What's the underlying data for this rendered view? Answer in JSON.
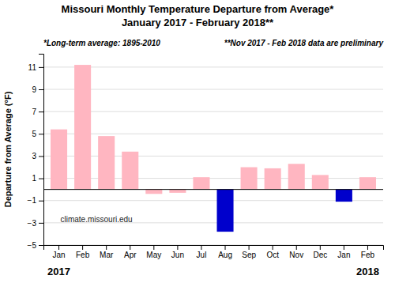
{
  "chart_data": {
    "type": "bar",
    "title": "Missouri Monthly Temperature Departure from Average*",
    "subtitle": "January 2017 - February 2018**",
    "ylabel": "Departure from Average (°F)",
    "annotations": [
      {
        "text": "*Long-term average: 1895-2010"
      },
      {
        "text": "**Nov 2017 - Feb 2018 data are preliminary"
      },
      {
        "text": "climate.missouri.edu"
      },
      {
        "text": "2017",
        "x": 0
      },
      {
        "text": "2018",
        "x": 13
      }
    ],
    "categories": [
      "Jan",
      "Feb",
      "Mar",
      "Apr",
      "May",
      "Jun",
      "Jul",
      "Aug",
      "Sep",
      "Oct",
      "Nov",
      "Dec",
      "Jan",
      "Feb"
    ],
    "values": [
      5.4,
      11.2,
      4.8,
      3.4,
      -0.4,
      -0.3,
      1.1,
      -3.8,
      2.0,
      1.9,
      2.3,
      1.3,
      -1.1,
      1.1
    ],
    "colors": [
      "#FFB6C1",
      "#FFB6C1",
      "#FFB6C1",
      "#FFB6C1",
      "#FFB6C1",
      "#FFB6C1",
      "#FFB6C1",
      "#0000CC",
      "#FFB6C1",
      "#FFB6C1",
      "#FFB6C1",
      "#FFB6C1",
      "#0000CC",
      "#FFB6C1"
    ],
    "ylim": [
      -5.0,
      12.2
    ],
    "yticks": [
      -5.0,
      -3.0,
      -1.0,
      1.0,
      3.0,
      5.0,
      7.0,
      9.0,
      11.0
    ],
    "grid": true
  }
}
